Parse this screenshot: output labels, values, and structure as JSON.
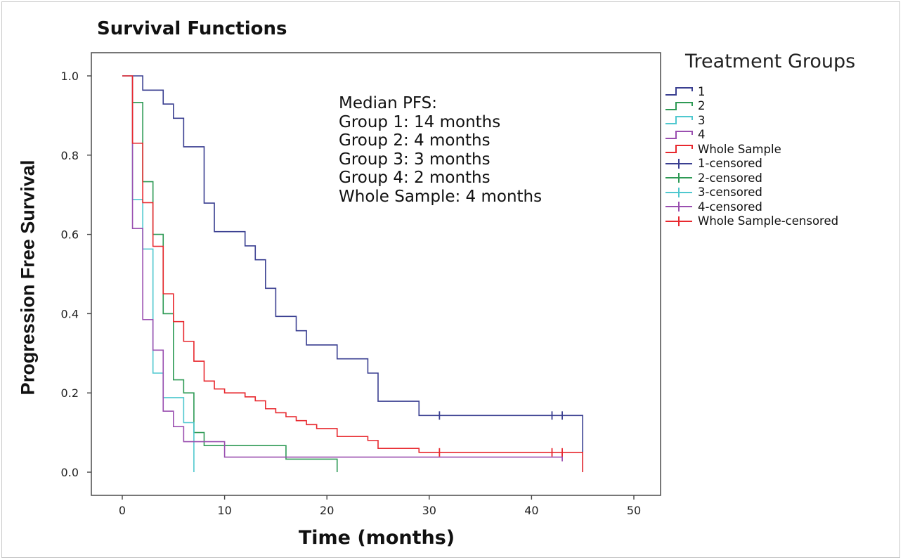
{
  "chart_data": {
    "type": "line",
    "title": "Survival Functions",
    "xlabel": "Time (months)",
    "ylabel": "Progression Free Survival",
    "xlim": [
      0,
      50
    ],
    "ylim": [
      0,
      1.0
    ],
    "xticks": [
      "0",
      "10",
      "20",
      "30",
      "40",
      "50"
    ],
    "yticks": [
      "0.0",
      "0.2",
      "0.4",
      "0.6",
      "0.8",
      "1.0"
    ],
    "legend_title": "Treatment Groups",
    "legend_position": "right",
    "annotation": [
      "Median PFS:",
      "Group 1: 14 months",
      "Group 2: 4 months",
      "Group 3: 3 months",
      "Group 4: 2 months",
      "Whole Sample: 4 months"
    ],
    "legend": [
      "1",
      "2",
      "3",
      "4",
      "Whole Sample",
      "1-censored",
      "2-censored",
      "3-censored",
      "4-censored",
      "Whole Sample-censored"
    ],
    "series": [
      {
        "name": "1",
        "color": "#3a3f91",
        "steps": [
          [
            0,
            1.0
          ],
          [
            2,
            0.964
          ],
          [
            4,
            0.929
          ],
          [
            5,
            0.893
          ],
          [
            6,
            0.821
          ],
          [
            8,
            0.679
          ],
          [
            9,
            0.607
          ],
          [
            12,
            0.571
          ],
          [
            13,
            0.536
          ],
          [
            14,
            0.464
          ],
          [
            15,
            0.393
          ],
          [
            17,
            0.357
          ],
          [
            18,
            0.321
          ],
          [
            21,
            0.286
          ],
          [
            24,
            0.25
          ],
          [
            25,
            0.179
          ],
          [
            29,
            0.143
          ],
          [
            45,
            0.143
          ],
          [
            45,
            0.0
          ]
        ],
        "censored": [
          [
            31,
            0.143
          ],
          [
            42,
            0.143
          ],
          [
            43,
            0.143
          ]
        ]
      },
      {
        "name": "2",
        "color": "#2e9a55",
        "steps": [
          [
            1,
            1.0
          ],
          [
            1,
            0.933
          ],
          [
            2,
            0.733
          ],
          [
            3,
            0.6
          ],
          [
            4,
            0.4
          ],
          [
            5,
            0.233
          ],
          [
            6,
            0.2
          ],
          [
            7,
            0.1
          ],
          [
            8,
            0.067
          ],
          [
            16,
            0.033
          ],
          [
            21,
            0.033
          ],
          [
            21,
            0.0
          ]
        ],
        "censored": []
      },
      {
        "name": "3",
        "color": "#4fc8cf",
        "steps": [
          [
            1,
            1.0
          ],
          [
            1,
            0.688
          ],
          [
            2,
            0.563
          ],
          [
            3,
            0.25
          ],
          [
            4,
            0.188
          ],
          [
            6,
            0.125
          ],
          [
            7,
            0.125
          ],
          [
            7,
            0.0
          ]
        ],
        "censored": []
      },
      {
        "name": "4",
        "color": "#9a4fb0",
        "steps": [
          [
            1,
            1.0
          ],
          [
            1,
            0.615
          ],
          [
            2,
            0.385
          ],
          [
            3,
            0.308
          ],
          [
            4,
            0.154
          ],
          [
            5,
            0.115
          ],
          [
            6,
            0.077
          ],
          [
            10,
            0.038
          ],
          [
            43,
            0.038
          ]
        ],
        "censored": [
          [
            43,
            0.038
          ]
        ]
      },
      {
        "name": "Whole Sample",
        "color": "#e8282e",
        "steps": [
          [
            0,
            1.0
          ],
          [
            1,
            1.0
          ],
          [
            1,
            0.83
          ],
          [
            2,
            0.68
          ],
          [
            3,
            0.57
          ],
          [
            4,
            0.45
          ],
          [
            5,
            0.38
          ],
          [
            6,
            0.33
          ],
          [
            7,
            0.28
          ],
          [
            8,
            0.23
          ],
          [
            9,
            0.21
          ],
          [
            10,
            0.2
          ],
          [
            12,
            0.19
          ],
          [
            13,
            0.18
          ],
          [
            14,
            0.16
          ],
          [
            15,
            0.15
          ],
          [
            16,
            0.14
          ],
          [
            17,
            0.13
          ],
          [
            18,
            0.12
          ],
          [
            19,
            0.11
          ],
          [
            21,
            0.09
          ],
          [
            24,
            0.08
          ],
          [
            25,
            0.06
          ],
          [
            29,
            0.05
          ],
          [
            45,
            0.05
          ],
          [
            45,
            0.0
          ]
        ],
        "censored": [
          [
            31,
            0.05
          ],
          [
            42,
            0.05
          ],
          [
            43,
            0.05
          ]
        ]
      }
    ]
  }
}
